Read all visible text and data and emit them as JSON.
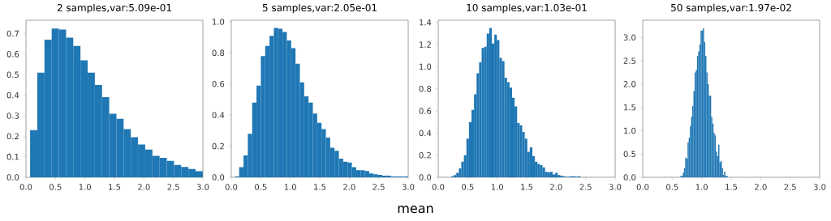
{
  "chart_data": [
    {
      "type": "histogram",
      "title": "2 samples,var:5.09e-01",
      "color": "#1f77b4",
      "bins": [
        0.07,
        0.192,
        0.314,
        0.436,
        0.558,
        0.68,
        0.802,
        0.924,
        1.046,
        1.168,
        1.29,
        1.412,
        1.534,
        1.656,
        1.778,
        1.9,
        2.022,
        2.144,
        2.266,
        2.388,
        2.51,
        2.632,
        2.754,
        2.876,
        2.998
      ],
      "values": [
        0.23,
        0.51,
        0.67,
        0.725,
        0.72,
        0.68,
        0.64,
        0.57,
        0.51,
        0.45,
        0.39,
        0.31,
        0.285,
        0.235,
        0.195,
        0.16,
        0.135,
        0.105,
        0.095,
        0.08,
        0.06,
        0.05,
        0.04,
        0.03
      ],
      "xlim": [
        0,
        3
      ],
      "ylim": [
        0,
        0.765
      ],
      "xticks": [
        {
          "value": 0,
          "label": "0.0"
        },
        0.5,
        {
          "value": 1,
          "label": "1.0"
        },
        1.5,
        {
          "value": 2,
          "label": "2.0"
        },
        2.5,
        {
          "value": 3,
          "label": "3.0"
        }
      ],
      "yticks": [
        {
          "value": 0,
          "label": "0.0"
        },
        0.1,
        0.2,
        0.3,
        0.4,
        0.5,
        0.6,
        0.7
      ]
    },
    {
      "type": "histogram",
      "title": "5 samples,var:2.05e-01",
      "xlabel": "mean",
      "color": "#1f77b4",
      "bins": [
        0.06,
        0.1335,
        0.207,
        0.2805,
        0.354,
        0.4275,
        0.501,
        0.5745,
        0.648,
        0.7215,
        0.795,
        0.8685,
        0.942,
        1.0155,
        1.089,
        1.1625,
        1.236,
        1.3095,
        1.383,
        1.4565,
        1.53,
        1.6035,
        1.677,
        1.7505,
        1.824,
        1.8975,
        1.971,
        2.0445,
        2.118,
        2.1915,
        2.265,
        2.3385,
        2.412,
        2.4855,
        2.559,
        2.6325,
        2.706,
        2.7795,
        2.853,
        2.9265,
        3.0
      ],
      "values": [
        0.005,
        0.065,
        0.14,
        0.28,
        0.48,
        0.59,
        0.78,
        0.845,
        0.91,
        0.96,
        0.955,
        0.935,
        0.88,
        0.83,
        0.73,
        0.61,
        0.52,
        0.48,
        0.41,
        0.35,
        0.31,
        0.255,
        0.19,
        0.17,
        0.12,
        0.1,
        0.095,
        0.065,
        0.045,
        0.045,
        0.04,
        0.025,
        0.02,
        0.015,
        0.01,
        0.01,
        0.005,
        0.005,
        0.005,
        0.005
      ],
      "xlim": [
        0,
        3
      ],
      "ylim": [
        0,
        1.01
      ],
      "xticks": [
        {
          "value": 0,
          "label": "0.0"
        },
        0.5,
        {
          "value": 1,
          "label": "1.0"
        },
        1.5,
        {
          "value": 2,
          "label": "2.0"
        },
        2.5,
        {
          "value": 3,
          "label": "3.0"
        }
      ],
      "yticks": [
        {
          "value": 0,
          "label": "0.0"
        },
        0.2,
        0.4,
        0.6,
        0.8,
        {
          "value": 1,
          "label": "1.0"
        }
      ]
    },
    {
      "type": "histogram",
      "title": "10 samples,var:1.03e-01",
      "color": "#1f77b4",
      "bins": [
        0.22,
        0.263,
        0.306,
        0.349,
        0.392,
        0.435,
        0.478,
        0.521,
        0.564,
        0.607,
        0.65,
        0.693,
        0.736,
        0.779,
        0.822,
        0.865,
        0.908,
        0.951,
        0.994,
        1.037,
        1.08,
        1.123,
        1.166,
        1.209,
        1.252,
        1.295,
        1.338,
        1.381,
        1.424,
        1.467,
        1.51,
        1.553,
        1.596,
        1.639,
        1.682,
        1.725,
        1.768,
        1.811,
        1.854,
        1.897,
        1.94,
        1.983,
        2.026,
        2.069,
        2.112,
        2.155,
        2.198,
        2.241,
        2.284,
        2.327,
        2.37,
        2.413
      ],
      "values": [
        0.01,
        0.02,
        0.04,
        0.08,
        0.14,
        0.2,
        0.35,
        0.5,
        0.61,
        0.75,
        0.94,
        1.04,
        1.17,
        1.18,
        1.3,
        1.35,
        1.21,
        1.29,
        1.24,
        1.08,
        1.05,
        0.9,
        0.86,
        0.81,
        0.72,
        0.64,
        0.49,
        0.47,
        0.41,
        0.35,
        0.23,
        0.27,
        0.19,
        0.14,
        0.12,
        0.11,
        0.09,
        0.05,
        0.045,
        0.05,
        0.025,
        0.04,
        0.02,
        0.015,
        0.01,
        0.005,
        0.005,
        0.01,
        0.01,
        0.005,
        0.01
      ],
      "xlim": [
        0,
        3
      ],
      "ylim": [
        0,
        1.42
      ],
      "xticks": [
        {
          "value": 0,
          "label": "0.0"
        },
        0.5,
        {
          "value": 1,
          "label": "1.0"
        },
        1.5,
        {
          "value": 2,
          "label": "2.0"
        },
        2.5,
        {
          "value": 3,
          "label": "3.0"
        }
      ],
      "yticks": [
        {
          "value": 0,
          "label": "0.0"
        },
        0.2,
        0.4,
        0.6,
        0.8,
        {
          "value": 1,
          "label": "1.0"
        },
        1.2,
        1.4
      ]
    },
    {
      "type": "histogram",
      "title": "50 samples,var:1.97e-02",
      "color": "#1f77b4",
      "bins": [
        0.64,
        0.66,
        0.68,
        0.7,
        0.72,
        0.74,
        0.76,
        0.78,
        0.8,
        0.82,
        0.84,
        0.86,
        0.88,
        0.9,
        0.92,
        0.94,
        0.96,
        0.98,
        1.0,
        1.02,
        1.04,
        1.06,
        1.08,
        1.1,
        1.12,
        1.14,
        1.16,
        1.18,
        1.2,
        1.22,
        1.24,
        1.26,
        1.28,
        1.3,
        1.32,
        1.34,
        1.36,
        1.38,
        1.4,
        1.42,
        1.44
      ],
      "values": [
        0.03,
        0.03,
        0.1,
        0.2,
        0.42,
        0.4,
        0.75,
        0.85,
        1.1,
        1.3,
        1.53,
        1.85,
        2.25,
        2.3,
        2.6,
        2.7,
        2.85,
        3.15,
        3.15,
        3.2,
        2.9,
        2.6,
        2.25,
        2.0,
        1.75,
        1.75,
        1.3,
        1.15,
        0.95,
        0.9,
        0.55,
        0.45,
        0.7,
        0.32,
        0.35,
        0.2,
        0.05,
        0.12,
        0.03,
        0.03
      ],
      "xlim": [
        0,
        3
      ],
      "ylim": [
        0,
        3.37
      ],
      "xticks": [
        {
          "value": 0,
          "label": "0.0"
        },
        0.5,
        {
          "value": 1,
          "label": "1.0"
        },
        1.5,
        {
          "value": 2,
          "label": "2.0"
        },
        2.5,
        {
          "value": 3,
          "label": "3.0"
        }
      ],
      "yticks": [
        {
          "value": 0,
          "label": "0.0"
        },
        0.5,
        {
          "value": 1,
          "label": "1.0"
        },
        1.5,
        {
          "value": 2,
          "label": "2.0"
        },
        2.5,
        {
          "value": 3,
          "label": "3.0"
        }
      ]
    }
  ]
}
